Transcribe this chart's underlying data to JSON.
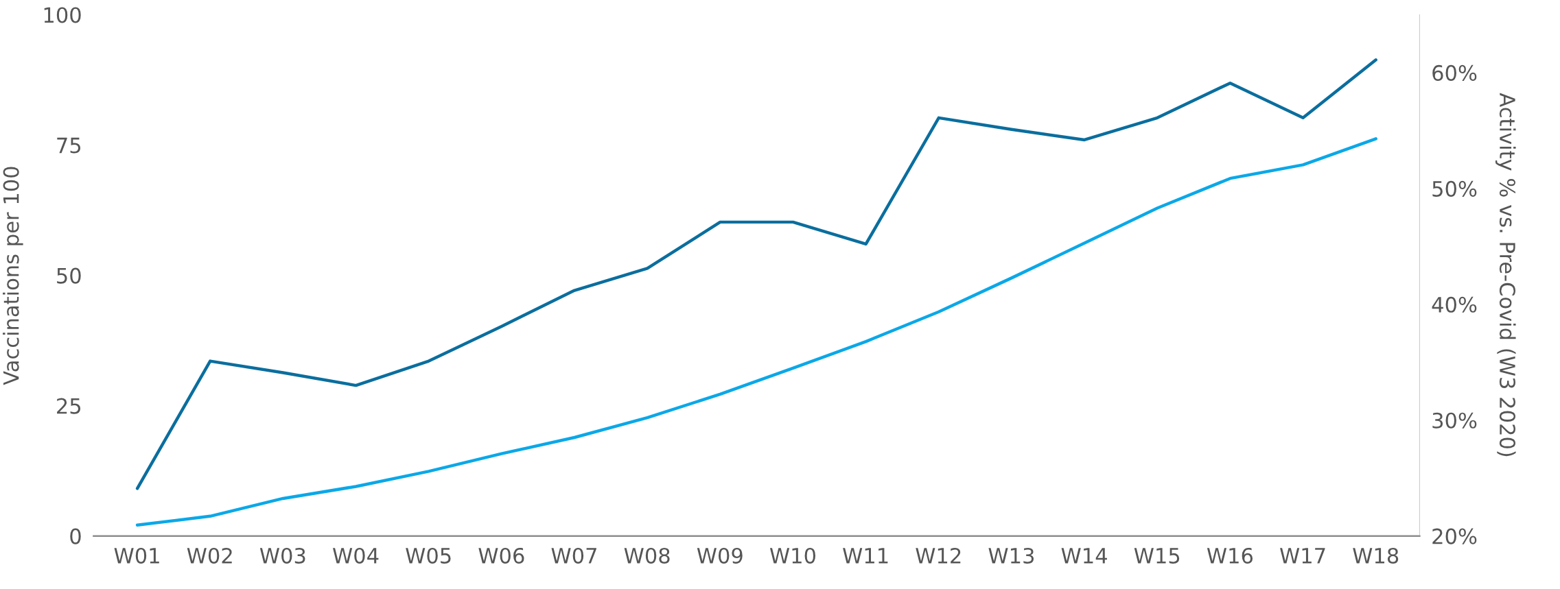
{
  "chart_data": {
    "type": "line",
    "ylabel": "Vaccinations per 100",
    "y2label": "Activity % vs. Pre-Covid (W3 2020)",
    "categories": [
      "W01",
      "W02",
      "W03",
      "W04",
      "W05",
      "W06",
      "W07",
      "W08",
      "W09",
      "W10",
      "W11",
      "W12",
      "W13",
      "W14",
      "W15",
      "W16",
      "W17",
      "W18"
    ],
    "series": [
      {
        "color": "#0aa8e8",
        "values": [
          2.1,
          3.8,
          7.2,
          9.5,
          12.4,
          15.8,
          18.9,
          22.7,
          27.2,
          32.2,
          37.3,
          43.0,
          49.5,
          56.2,
          62.9,
          68.6,
          71.2,
          76.2
        ]
      },
      {
        "color": "#0a6e9e",
        "axis": "y2",
        "values": [
          24.1,
          35.1,
          34.1,
          33.0,
          35.1,
          38.1,
          41.2,
          43.1,
          47.1,
          47.1,
          45.2,
          56.1,
          55.1,
          54.2,
          56.1,
          59.1,
          56.1,
          61.1
        ]
      }
    ],
    "ylim": [
      0,
      100
    ],
    "yticks": [
      0,
      25,
      50,
      75,
      100
    ],
    "y2lim": [
      20,
      65
    ],
    "y2ticks": [
      {
        "value": 20,
        "label": "20%"
      },
      {
        "value": 30,
        "label": "30%"
      },
      {
        "value": 40,
        "label": "40%"
      },
      {
        "value": 50,
        "label": "50%"
      },
      {
        "value": 60,
        "label": "60%"
      }
    ],
    "grid": false,
    "legend": false,
    "marker": "none",
    "line_style": "solid"
  }
}
